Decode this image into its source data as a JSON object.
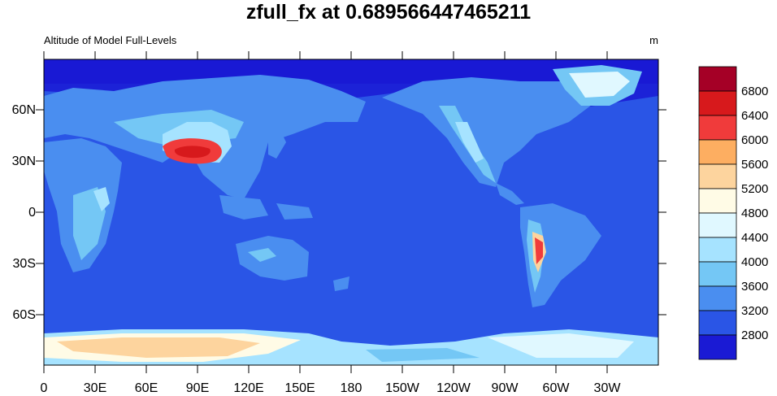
{
  "title": "zfull_fx at 0.689566447465211",
  "subtitle_left": "Altitude of Model Full-Levels",
  "subtitle_right": "m",
  "lat_labels": [
    "60N",
    "30N",
    "0",
    "30S",
    "60S"
  ],
  "lon_labels": [
    "0",
    "30E",
    "60E",
    "90E",
    "120E",
    "150E",
    "180",
    "150W",
    "120W",
    "90W",
    "60W",
    "30W"
  ],
  "colorbar": {
    "labels": [
      "6800",
      "6400",
      "6000",
      "5600",
      "5200",
      "4800",
      "4400",
      "4000",
      "3600",
      "3200",
      "2800"
    ],
    "colors": [
      "#a50026",
      "#d7191c",
      "#f03b3b",
      "#fdae61",
      "#fdd49e",
      "#fffbe6",
      "#e0f8ff",
      "#a6e3ff",
      "#74c7f5",
      "#4a8ef0",
      "#2a55e6",
      "#1a1ad4"
    ]
  }
}
